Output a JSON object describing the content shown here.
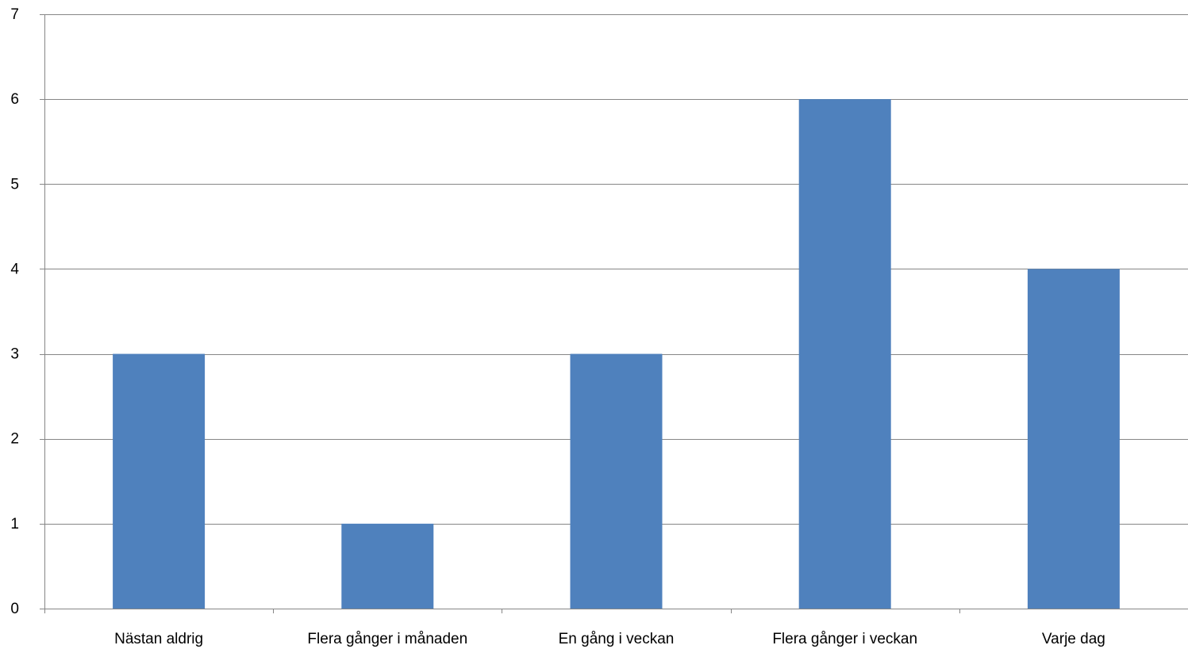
{
  "chart_data": {
    "type": "bar",
    "categories": [
      "Nästan aldrig",
      "Flera gånger i månaden",
      "En gång i veckan",
      "Flera gånger i veckan",
      "Varje dag"
    ],
    "values": [
      3,
      1,
      3,
      6,
      4
    ],
    "ylim": [
      0,
      7
    ],
    "yticks": [
      "0",
      "1",
      "2",
      "3",
      "4",
      "5",
      "6",
      "7"
    ],
    "grid": true,
    "legend": "none",
    "colors": {
      "bar": "#4F81BD",
      "grid": "#868686"
    }
  }
}
